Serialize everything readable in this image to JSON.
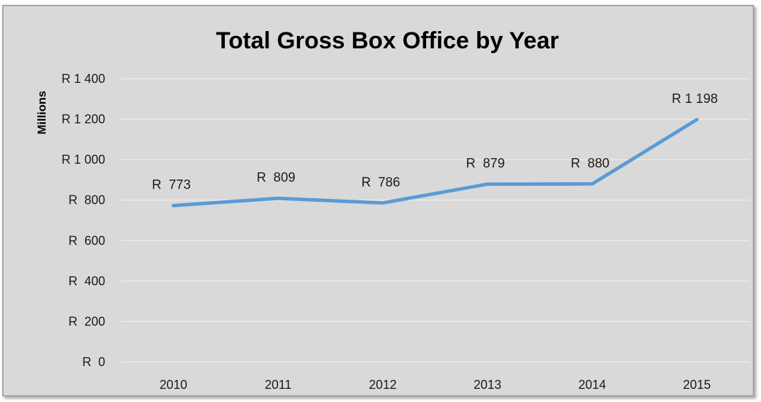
{
  "chart_data": {
    "type": "line",
    "title": "Total Gross Box Office by Year",
    "ylabel": "Millions",
    "xlabel": "",
    "categories": [
      "2010",
      "2011",
      "2012",
      "2013",
      "2014",
      "2015"
    ],
    "values": [
      773,
      809,
      786,
      879,
      880,
      1198
    ],
    "data_labels": [
      "R  773",
      "R  809",
      "R  786",
      "R  879",
      "R  880",
      "R 1 198"
    ],
    "ylim": [
      0,
      1400
    ],
    "yticks": [
      0,
      200,
      400,
      600,
      800,
      1000,
      1200,
      1400
    ],
    "ytick_labels": [
      "R  0",
      "R  200",
      "R  400",
      "R  600",
      "R  800",
      "R 1 000",
      "R 1 200",
      "R 1 400"
    ],
    "grid": true,
    "legend": "none",
    "line_color": "#5b9bd5",
    "background_color": "#d9d9d9"
  }
}
